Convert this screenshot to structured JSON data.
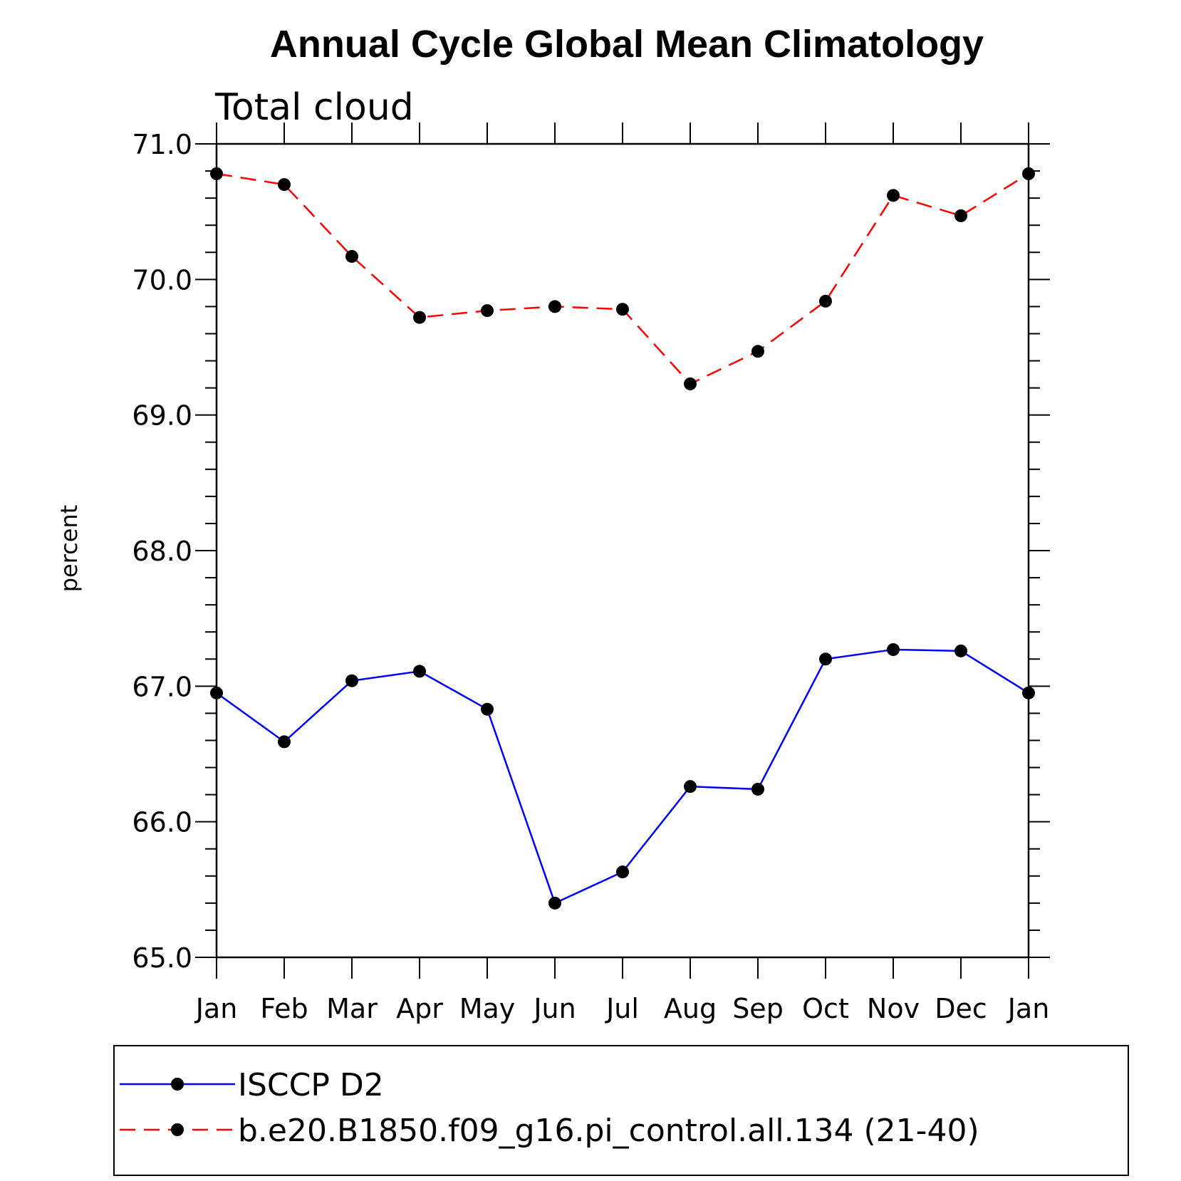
{
  "chart_data": {
    "type": "line",
    "title": "Annual Cycle Global Mean Climatology",
    "subtitle": "Total cloud",
    "ylabel": "percent",
    "xlabel": "",
    "categories": [
      "Jan",
      "Feb",
      "Mar",
      "Apr",
      "May",
      "Jun",
      "Jul",
      "Aug",
      "Sep",
      "Oct",
      "Nov",
      "Dec",
      "Jan"
    ],
    "ylim": [
      65.0,
      71.0
    ],
    "yticks": [
      "65.0",
      "66.0",
      "67.0",
      "68.0",
      "69.0",
      "70.0",
      "71.0"
    ],
    "grid": false,
    "legend_position": "bottom",
    "series": [
      {
        "name": "ISCCP D2",
        "color": "#0000ff",
        "dash": "solid",
        "marker": "filled-circle",
        "values": [
          66.95,
          66.59,
          67.04,
          67.11,
          66.83,
          65.4,
          65.63,
          66.26,
          66.24,
          67.2,
          67.27,
          67.26,
          66.95
        ]
      },
      {
        "name": "b.e20.B1850.f09_g16.pi_control.all.134 (21-40)",
        "color": "#ff0000",
        "dash": "dashed",
        "marker": "filled-circle",
        "values": [
          70.78,
          70.7,
          70.17,
          69.72,
          69.77,
          69.8,
          69.78,
          69.23,
          69.47,
          69.84,
          70.62,
          70.47,
          70.78
        ]
      }
    ]
  }
}
